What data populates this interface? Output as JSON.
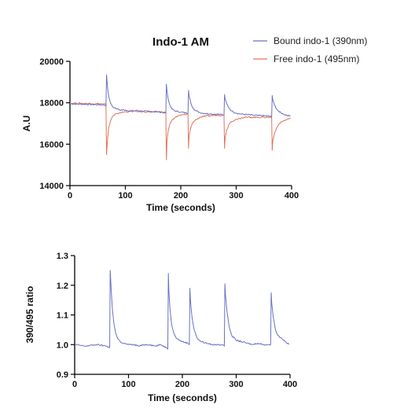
{
  "chart_data": [
    {
      "type": "line",
      "title": "Indo-1 AM",
      "xlabel": "Time (seconds)",
      "ylabel": "A.U",
      "xlim": [
        0,
        400
      ],
      "ylim": [
        14000,
        20000
      ],
      "x_ticks": [
        "0",
        "100",
        "200",
        "300",
        "400"
      ],
      "y_ticks": [
        "14000",
        "16000",
        "18000",
        "20000"
      ],
      "legend_position": "top-right",
      "grid": false,
      "series": [
        {
          "name": "Bound indo-1 (390nm)",
          "color": "#6b6fc4",
          "x": [
            0,
            60,
            65,
            66,
            68,
            70,
            73,
            76,
            80,
            85,
            90,
            100,
            110,
            120,
            130,
            140,
            150,
            160,
            170,
            173,
            174,
            175,
            177,
            180,
            184,
            190,
            200,
            210,
            213,
            214,
            215,
            218,
            222,
            228,
            235,
            245,
            255,
            265,
            275,
            278,
            279,
            280,
            283,
            287,
            292,
            300,
            310,
            320,
            330,
            340,
            350,
            360,
            364,
            365,
            366,
            369,
            373,
            378,
            385,
            392,
            398
          ],
          "values": [
            17950,
            17900,
            17850,
            19350,
            18700,
            18300,
            18000,
            17850,
            17750,
            17700,
            17650,
            17650,
            17600,
            17620,
            17600,
            17580,
            17570,
            17560,
            17520,
            17500,
            18900,
            18600,
            18200,
            17900,
            17700,
            17600,
            17550,
            17500,
            17480,
            18600,
            18350,
            18000,
            17750,
            17600,
            17520,
            17480,
            17460,
            17450,
            17420,
            17400,
            18400,
            18200,
            17950,
            17750,
            17600,
            17500,
            17450,
            17420,
            17400,
            17380,
            17370,
            17350,
            17320,
            18350,
            18150,
            17900,
            17700,
            17550,
            17450,
            17400,
            17350
          ]
        },
        {
          "name": "Free indo-1 (495nm)",
          "color": "#e0735a",
          "x": [
            0,
            60,
            65,
            66,
            68,
            70,
            73,
            76,
            80,
            85,
            90,
            100,
            110,
            120,
            130,
            140,
            150,
            160,
            170,
            173,
            174,
            175,
            177,
            180,
            184,
            190,
            200,
            210,
            213,
            214,
            215,
            218,
            222,
            228,
            235,
            245,
            255,
            265,
            275,
            278,
            279,
            280,
            283,
            287,
            292,
            300,
            310,
            320,
            330,
            340,
            350,
            360,
            364,
            365,
            366,
            369,
            373,
            378,
            385,
            392,
            398
          ],
          "values": [
            17980,
            17950,
            17920,
            15500,
            16300,
            16800,
            17100,
            17300,
            17400,
            17480,
            17520,
            17560,
            17580,
            17580,
            17570,
            17560,
            17560,
            17560,
            17550,
            17550,
            15250,
            16100,
            16600,
            16950,
            17150,
            17300,
            17400,
            17450,
            17450,
            15800,
            16400,
            16800,
            17050,
            17200,
            17300,
            17350,
            17380,
            17400,
            17400,
            17400,
            15800,
            16300,
            16700,
            16950,
            17100,
            17200,
            17280,
            17300,
            17300,
            17300,
            17300,
            17300,
            17300,
            15700,
            16150,
            16500,
            16800,
            17000,
            17120,
            17200,
            17250
          ]
        }
      ]
    },
    {
      "type": "line",
      "title": "",
      "xlabel": "Time (seconds)",
      "ylabel": "390/495 ratio",
      "xlim": [
        0,
        400
      ],
      "ylim": [
        0.9,
        1.3
      ],
      "x_ticks": [
        "0",
        "100",
        "200",
        "300",
        "400"
      ],
      "y_ticks": [
        "0.9",
        "1.0",
        "1.1",
        "1.2",
        "1.3"
      ],
      "grid": false,
      "series": [
        {
          "color": "#6b6fc4",
          "x": [
            0,
            20,
            40,
            60,
            65,
            66,
            68,
            70,
            73,
            76,
            80,
            85,
            90,
            100,
            110,
            120,
            130,
            140,
            150,
            160,
            170,
            173,
            174,
            175,
            177,
            180,
            184,
            190,
            200,
            210,
            213,
            214,
            215,
            218,
            222,
            228,
            235,
            245,
            255,
            265,
            275,
            278,
            279,
            280,
            283,
            287,
            292,
            300,
            310,
            320,
            330,
            340,
            350,
            360,
            364,
            365,
            366,
            369,
            373,
            378,
            385,
            392,
            398
          ],
          "values": [
            1.0,
            0.995,
            1.0,
            0.995,
            0.99,
            1.25,
            1.18,
            1.12,
            1.07,
            1.04,
            1.02,
            1.01,
            1.005,
            1.0,
            1.0,
            0.995,
            1.0,
            1.0,
            0.995,
            1.0,
            0.99,
            0.985,
            1.24,
            1.18,
            1.12,
            1.07,
            1.04,
            1.02,
            1.01,
            1.005,
            1.0,
            1.19,
            1.15,
            1.09,
            1.05,
            1.02,
            1.01,
            1.005,
            1.0,
            1.0,
            1.0,
            0.995,
            1.205,
            1.17,
            1.11,
            1.06,
            1.03,
            1.015,
            1.01,
            1.005,
            1.0,
            1.005,
            1.0,
            1.0,
            1.0,
            1.175,
            1.14,
            1.09,
            1.05,
            1.03,
            1.02,
            1.01,
            1.0
          ]
        }
      ]
    }
  ]
}
